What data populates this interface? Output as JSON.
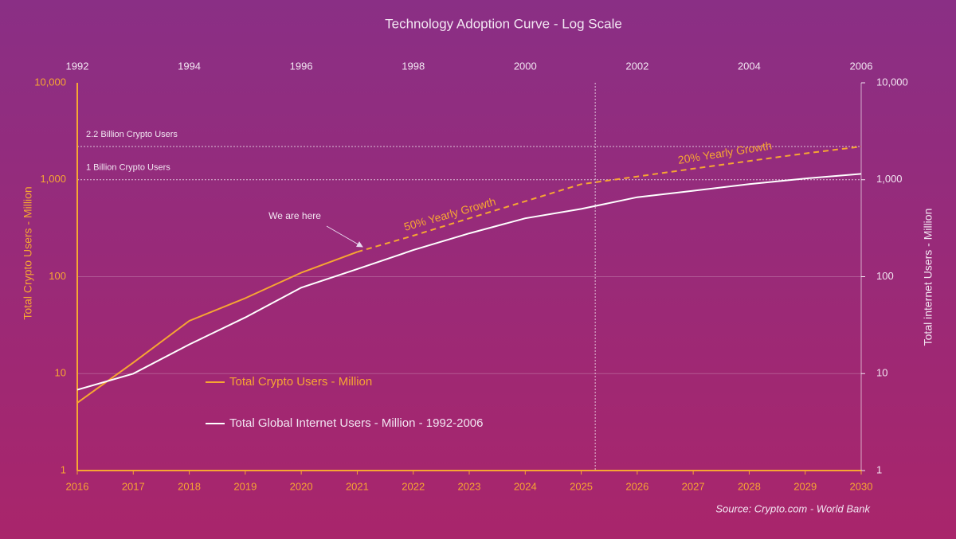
{
  "chart_data": {
    "type": "line",
    "title": "Technology Adoption Curve - Log Scale",
    "y_label": "Total Crypto Users - Million",
    "y2_label": "Total internet Users - Million",
    "source": "Source: Crypto.com  - World Bank",
    "log_scale": true,
    "xlim": [
      2016,
      2030
    ],
    "xticks": [
      2016,
      2017,
      2018,
      2019,
      2020,
      2021,
      2022,
      2023,
      2024,
      2025,
      2026,
      2027,
      2028,
      2029,
      2030
    ],
    "x2lim": [
      1992,
      2006
    ],
    "x2ticks": [
      1992,
      1994,
      1996,
      1998,
      2000,
      2002,
      2004,
      2006
    ],
    "ylim": [
      1,
      10000
    ],
    "yticks": [
      1,
      10,
      100,
      {
        "value": 1000,
        "label": "1,000"
      },
      {
        "value": 10000,
        "label": "10,000"
      }
    ],
    "y2lim": [
      1,
      10000
    ],
    "y2ticks": [
      1,
      10,
      100,
      {
        "value": 1000,
        "label": "1,000"
      },
      {
        "value": 10000,
        "label": "10,000"
      }
    ],
    "series": [
      {
        "name": "Total Crypto Users - Million",
        "color": "#f7a632",
        "dashed_from_x": 2021,
        "x": [
          2016,
          2017,
          2018,
          2019,
          2020,
          2021,
          2022,
          2023,
          2024,
          2025,
          2026,
          2027,
          2028,
          2029,
          2030
        ],
        "values": [
          5,
          13,
          35,
          60,
          110,
          180,
          265,
          400,
          600,
          900,
          1080,
          1300,
          1560,
          1870,
          2200
        ]
      },
      {
        "name": "Total Global Internet Users - Million - 1992-2006",
        "color": "#ffffff",
        "axis": "y2",
        "x": [
          1992,
          1993,
          1994,
          1995,
          1996,
          1997,
          1998,
          1999,
          2000,
          2001,
          2002,
          2003,
          2004,
          2005,
          2006
        ],
        "values": [
          6.8,
          10,
          20,
          38,
          77,
          120,
          188,
          280,
          400,
          500,
          660,
          770,
          900,
          1030,
          1150
        ]
      }
    ],
    "reference_lines": [
      {
        "value": 2200,
        "label": "2.2 Billion Crypto Users"
      },
      {
        "value": 1000,
        "label": "1 Billion Crypto Users"
      }
    ],
    "vlines": [
      2025.25
    ],
    "annotations": [
      "We are here",
      "50% Yearly Growth",
      "20% Yearly Growth"
    ]
  }
}
